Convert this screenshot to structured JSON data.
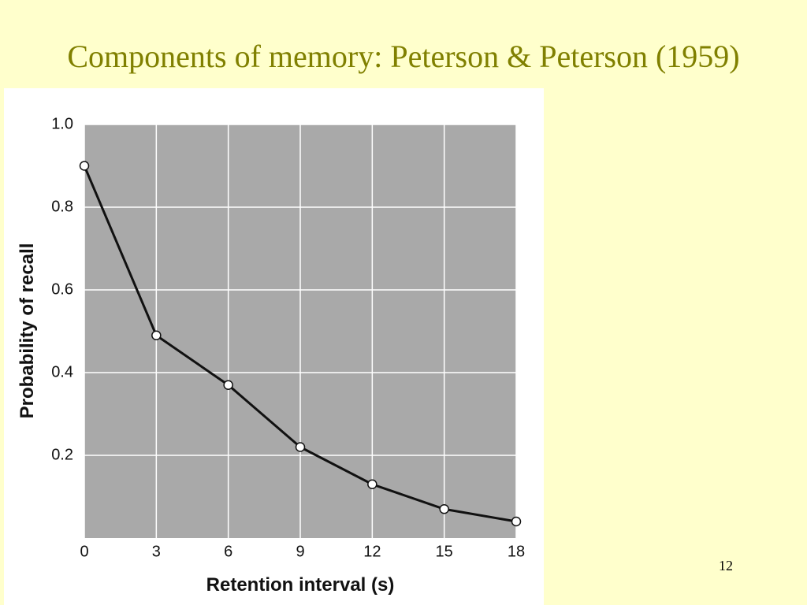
{
  "slide": {
    "title": "Components of memory: Peterson & Peterson (1959)",
    "page_number": "12"
  },
  "chart_data": {
    "type": "line",
    "x_label": "Retention interval (s)",
    "y_label": "Probability of recall",
    "x": [
      0,
      3,
      6,
      9,
      12,
      15,
      18
    ],
    "series": [
      {
        "name": "Recall",
        "color": "#111111",
        "values": [
          0.9,
          0.49,
          0.37,
          0.22,
          0.13,
          0.07,
          0.04
        ]
      }
    ],
    "xlim": [
      0,
      18
    ],
    "xticks": [
      0,
      3,
      6,
      9,
      12,
      15,
      18
    ],
    "ylim": [
      0,
      1
    ],
    "yticks": [
      0.2,
      0.4,
      0.6,
      0.8,
      {
        "value": 1,
        "label": "1.0"
      }
    ],
    "grid": true
  }
}
